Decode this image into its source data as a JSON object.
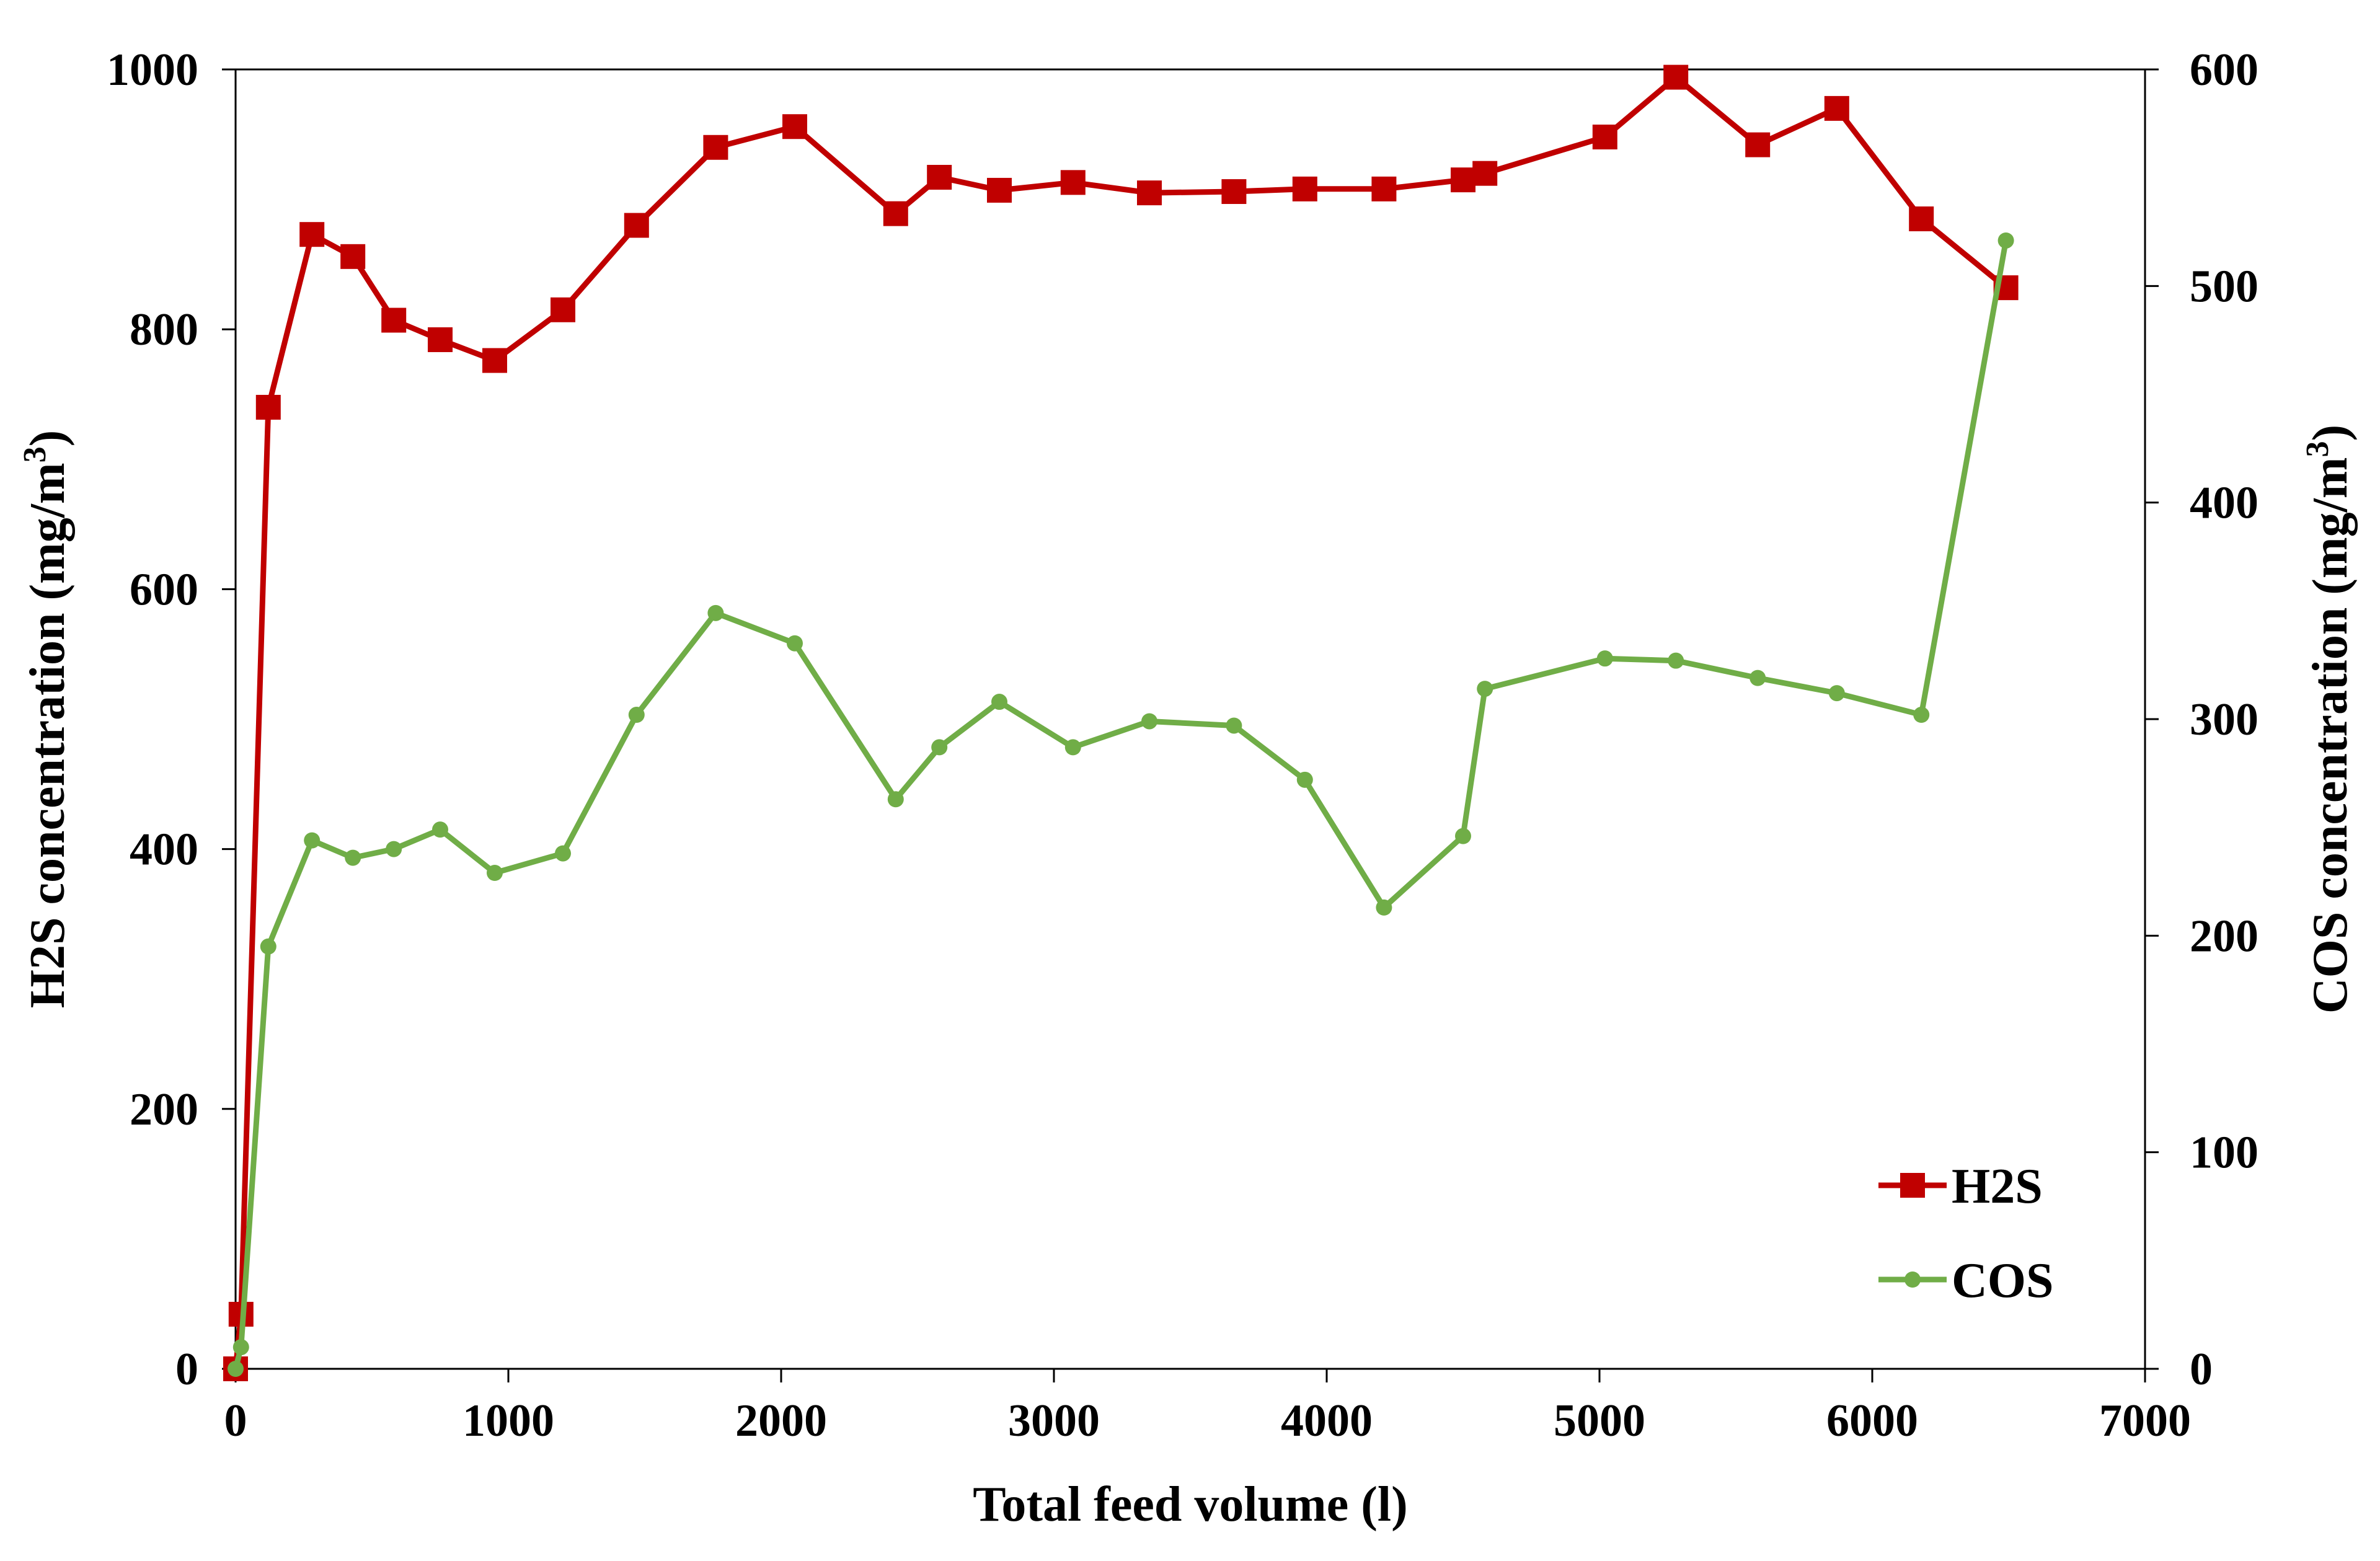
{
  "chart_data": {
    "type": "line",
    "xlabel": "Total feed volume (l)",
    "ylabel_left": {
      "main": "H2S concentration  (mg/m",
      "sup": "3",
      "close": ")"
    },
    "ylabel_right": {
      "main": "COS concentration  (mg/m",
      "sup": "3",
      "close": ")"
    },
    "xlim": [
      0,
      7000
    ],
    "ylim_left": [
      0,
      1000
    ],
    "ylim_right": [
      0,
      600
    ],
    "x_ticks": [
      0,
      1000,
      2000,
      3000,
      4000,
      5000,
      6000,
      7000
    ],
    "y_ticks_left": [
      0,
      200,
      400,
      600,
      800,
      1000
    ],
    "y_ticks_right": [
      0,
      100,
      200,
      300,
      400,
      500,
      600
    ],
    "grid": false,
    "legend_position": "bottom-right",
    "series": [
      {
        "name": "H2S",
        "axis": "left",
        "color": "#c00000",
        "marker": "square",
        "x": [
          0,
          20,
          120,
          280,
          430,
          580,
          750,
          950,
          1200,
          1470,
          1760,
          2050,
          2420,
          2580,
          2800,
          3070,
          3350,
          3660,
          3920,
          4210,
          4500,
          4580,
          5020,
          5280,
          5580,
          5870,
          6180,
          6490
        ],
        "y": [
          0,
          42,
          740,
          873,
          856,
          807,
          792,
          776,
          815,
          880,
          940,
          956,
          889,
          917,
          907,
          913,
          905,
          906,
          908,
          908,
          915,
          920,
          948,
          994,
          942,
          970,
          885,
          832
        ]
      },
      {
        "name": "COS",
        "axis": "right",
        "color": "#70ad47",
        "marker": "circle",
        "x": [
          0,
          20,
          120,
          280,
          430,
          580,
          750,
          950,
          1200,
          1470,
          1760,
          2050,
          2420,
          2580,
          2800,
          3070,
          3350,
          3660,
          3920,
          4210,
          4500,
          4580,
          5020,
          5280,
          5580,
          5870,
          6180,
          6490
        ],
        "y": [
          0,
          10,
          195,
          244,
          236,
          240,
          249,
          229,
          238,
          302,
          349,
          335,
          263,
          287,
          308,
          287,
          299,
          297,
          272,
          213,
          246,
          314,
          328,
          327,
          319,
          312,
          302,
          521
        ]
      }
    ]
  }
}
